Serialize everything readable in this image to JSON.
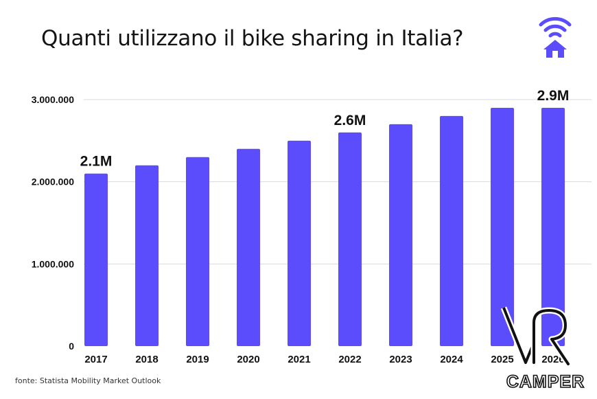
{
  "title": "Quanti utilizzano il bike sharing in Italia?",
  "source": "fonte: Statista Mobility Market Outlook",
  "logo_text": "CAMPER",
  "accent_color": "#5b4dfc",
  "chart_data": {
    "type": "bar",
    "categories": [
      "2017",
      "2018",
      "2019",
      "2020",
      "2021",
      "2022",
      "2023",
      "2024",
      "2025",
      "2026"
    ],
    "values": [
      2100000,
      2200000,
      2300000,
      2400000,
      2500000,
      2600000,
      2700000,
      2800000,
      2900000,
      2900000
    ],
    "ylim": [
      0,
      3000000
    ],
    "yticks": [
      0,
      1000000,
      2000000,
      3000000
    ],
    "ytick_labels": [
      "0",
      "1.000.000",
      "2.000.000",
      "3.000.000"
    ],
    "data_labels": [
      {
        "category": "2017",
        "text": "2.1M"
      },
      {
        "category": "2022",
        "text": "2.6M"
      },
      {
        "category": "2026",
        "text": "2.9M"
      }
    ],
    "grid": true,
    "bar_color": "#5b4dfc"
  }
}
